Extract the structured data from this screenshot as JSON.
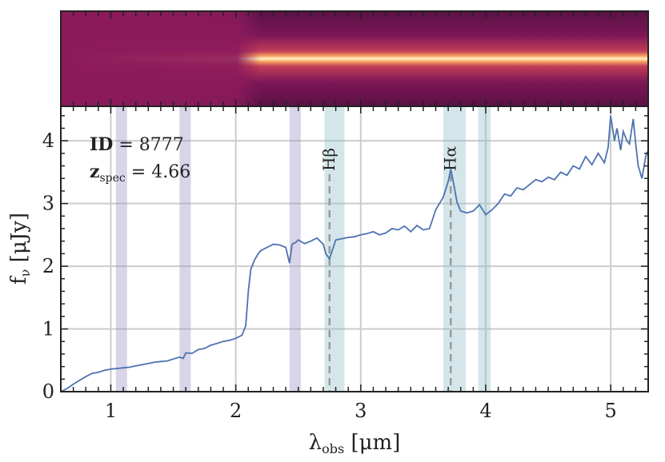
{
  "chart_data": {
    "type": "line",
    "xlabel": "λ_obs [μm]",
    "ylabel": "f_ν [μJy]",
    "xlim": [
      0.6,
      5.3
    ],
    "ylim": [
      0,
      4.55
    ],
    "xticks": [
      1,
      2,
      3,
      4,
      5
    ],
    "yticks": [
      0,
      1,
      2,
      3,
      4
    ],
    "grid": true,
    "annotation": {
      "id_label": "ID",
      "id_value": "8777",
      "z_label": "z",
      "z_sub": "spec",
      "z_value": "4.66"
    },
    "lines": [
      {
        "label": "Hβ",
        "x": 2.75
      },
      {
        "label": "Hα",
        "x": 3.72
      }
    ],
    "bands_purple": [
      [
        1.04,
        1.13
      ],
      [
        1.55,
        1.64
      ],
      [
        2.43,
        2.52
      ]
    ],
    "bands_teal": [
      [
        2.71,
        2.87
      ],
      [
        3.66,
        3.84
      ],
      [
        3.94,
        4.04
      ]
    ],
    "series": [
      {
        "color": "#4c72b0",
        "x": [
          0.6,
          0.65,
          0.7,
          0.75,
          0.8,
          0.85,
          0.9,
          0.95,
          1.0,
          1.05,
          1.1,
          1.15,
          1.2,
          1.25,
          1.3,
          1.35,
          1.4,
          1.45,
          1.5,
          1.55,
          1.58,
          1.6,
          1.65,
          1.7,
          1.75,
          1.8,
          1.85,
          1.9,
          1.95,
          2.0,
          2.05,
          2.08,
          2.1,
          2.12,
          2.15,
          2.18,
          2.2,
          2.25,
          2.3,
          2.35,
          2.4,
          2.43,
          2.45,
          2.48,
          2.5,
          2.55,
          2.6,
          2.65,
          2.7,
          2.72,
          2.75,
          2.78,
          2.8,
          2.85,
          2.9,
          2.95,
          3.0,
          3.05,
          3.1,
          3.15,
          3.2,
          3.25,
          3.3,
          3.35,
          3.4,
          3.45,
          3.5,
          3.55,
          3.6,
          3.63,
          3.66,
          3.7,
          3.72,
          3.74,
          3.77,
          3.8,
          3.85,
          3.9,
          3.95,
          4.0,
          4.05,
          4.1,
          4.15,
          4.2,
          4.25,
          4.3,
          4.35,
          4.4,
          4.45,
          4.5,
          4.55,
          4.6,
          4.65,
          4.7,
          4.75,
          4.8,
          4.85,
          4.9,
          4.95,
          4.98,
          5.0,
          5.03,
          5.05,
          5.08,
          5.1,
          5.13,
          5.15,
          5.18,
          5.2,
          5.22,
          5.25,
          5.28,
          5.3
        ],
        "y": [
          0.0,
          0.05,
          0.12,
          0.18,
          0.24,
          0.29,
          0.31,
          0.34,
          0.36,
          0.37,
          0.38,
          0.39,
          0.41,
          0.43,
          0.45,
          0.47,
          0.48,
          0.49,
          0.52,
          0.55,
          0.53,
          0.62,
          0.61,
          0.67,
          0.69,
          0.74,
          0.77,
          0.8,
          0.82,
          0.85,
          0.9,
          1.05,
          1.6,
          1.95,
          2.1,
          2.2,
          2.25,
          2.3,
          2.35,
          2.34,
          2.3,
          2.05,
          2.35,
          2.38,
          2.42,
          2.36,
          2.4,
          2.45,
          2.35,
          2.2,
          2.12,
          2.3,
          2.42,
          2.44,
          2.46,
          2.47,
          2.5,
          2.52,
          2.55,
          2.5,
          2.53,
          2.6,
          2.58,
          2.64,
          2.55,
          2.65,
          2.58,
          2.6,
          2.9,
          3.0,
          3.1,
          3.35,
          3.55,
          3.35,
          3.02,
          2.88,
          2.85,
          2.88,
          2.98,
          2.82,
          2.9,
          3.0,
          3.15,
          3.12,
          3.25,
          3.22,
          3.3,
          3.38,
          3.35,
          3.42,
          3.38,
          3.5,
          3.45,
          3.6,
          3.55,
          3.75,
          3.62,
          3.8,
          3.65,
          3.9,
          4.4,
          4.0,
          4.2,
          3.85,
          4.15,
          4.0,
          3.95,
          4.35,
          3.95,
          3.6,
          3.4,
          3.75,
          3.85
        ]
      }
    ]
  }
}
